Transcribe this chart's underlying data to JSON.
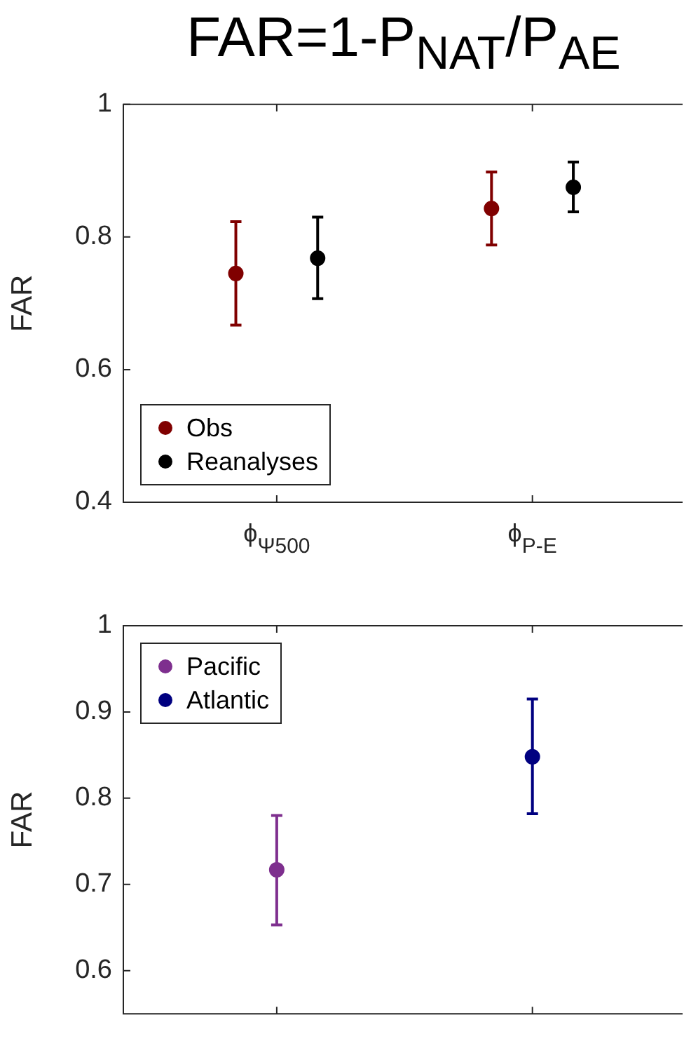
{
  "chart_data": [
    {
      "type": "scatter",
      "title": "FAR=1-P$_{NAT}$/P$_{AE}$",
      "ylabel": "FAR",
      "categories": [
        "ϕ$_{Ψ500}$",
        "ϕ$_{P-E}$"
      ],
      "ylim": [
        0.4,
        1
      ],
      "yticks": [
        0.4,
        0.6,
        0.8,
        1
      ],
      "marker": "circle",
      "legend": "bottom left",
      "series": [
        {
          "name": "Obs",
          "color": "#800000",
          "values": [
            0.745,
            0.843
          ],
          "errors": [
            [
              0.667,
              0.823
            ],
            [
              0.788,
              0.898
            ]
          ]
        },
        {
          "name": "Reanalyses",
          "color": "#000000",
          "values": [
            0.768,
            0.875
          ],
          "errors": [
            [
              0.707,
              0.83
            ],
            [
              0.838,
              0.913
            ]
          ]
        }
      ]
    },
    {
      "type": "scatter",
      "ylabel": "FAR",
      "categories": [
        null,
        null
      ],
      "ylim": [
        0.55,
        1
      ],
      "yticks": [
        0.6,
        0.7,
        0.8,
        0.9,
        1
      ],
      "marker": "circle",
      "legend": "top left",
      "tick_labels": "y",
      "series": [
        {
          "name": "Pacific",
          "color": "#7e2f8e",
          "values": [
            0.717,
            null
          ],
          "errors": [
            [
              0.653,
              0.78
            ],
            null
          ]
        },
        {
          "name": "Atlantic",
          "color": "#000080",
          "values": [
            null,
            0.848
          ],
          "errors": [
            null,
            [
              0.782,
              0.915
            ]
          ]
        }
      ]
    }
  ]
}
